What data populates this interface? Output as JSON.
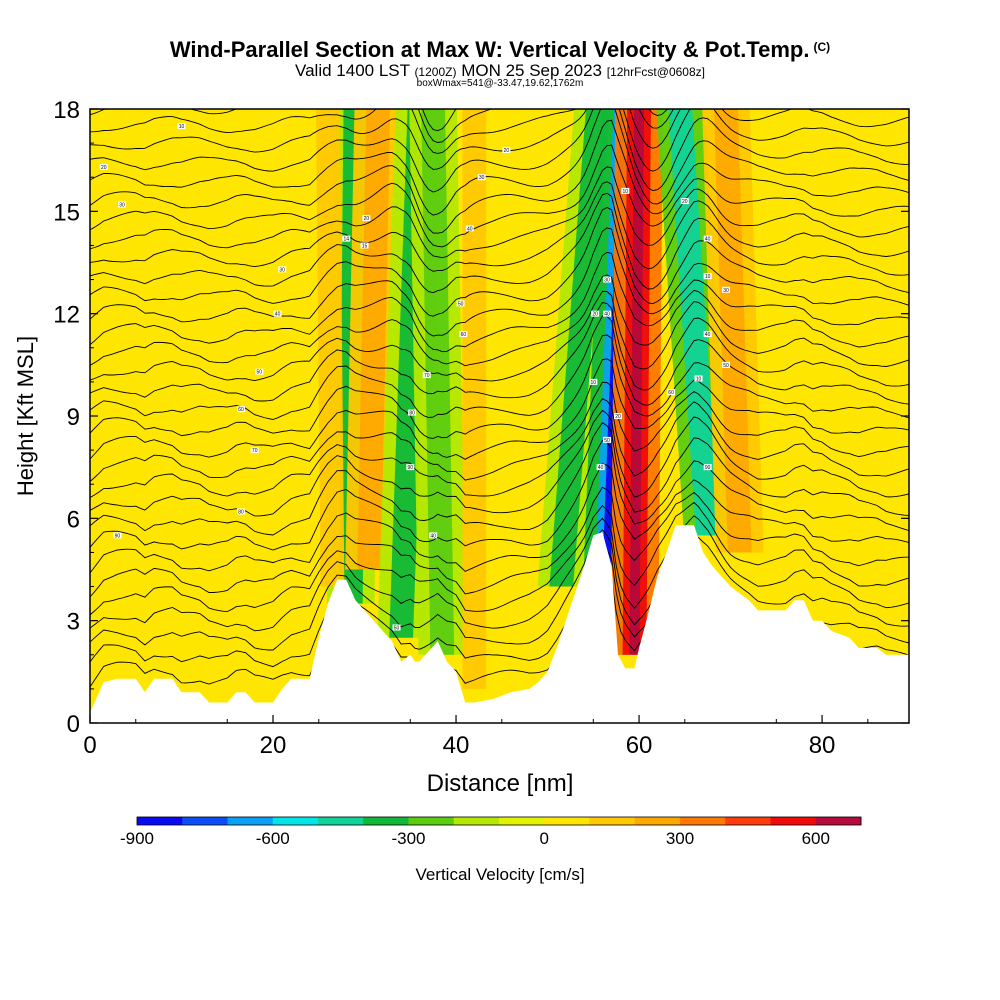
{
  "header": {
    "title": "Wind-Parallel Section at Max W: Vertical Velocity & Pot.Temp.",
    "title_mark": "(C)",
    "valid_prefix": "Valid 1400 LST",
    "valid_utc": "(1200Z)",
    "valid_date": "MON 25 Sep 2023",
    "forecast_tag": "[12hrFcst@0608z]",
    "box_info": "boxWmax=541@-33.47,19.62,1762m"
  },
  "chart_data": {
    "type": "heatmap",
    "title": "Wind-Parallel Section at Max W: Vertical Velocity & Pot.Temp.",
    "xlabel": "Distance [nm]",
    "ylabel": "Height [Kft MSL]",
    "xlim": [
      0,
      89.5
    ],
    "ylim": [
      0,
      18
    ],
    "x_ticks": [
      0,
      20,
      40,
      60,
      80
    ],
    "x_tick_labels": [
      "0",
      "20",
      "40",
      "60",
      "80"
    ],
    "y_ticks": [
      0,
      3,
      6,
      9,
      12,
      15,
      18
    ],
    "y_tick_labels": [
      "0",
      "3",
      "6",
      "9",
      "12",
      "15",
      "18"
    ],
    "colorbar": {
      "label": "Vertical Velocity [cm/s]",
      "min": -900,
      "max": 700,
      "step": 100,
      "tick_values": [
        -900,
        -600,
        -300,
        0,
        300,
        600
      ],
      "tick_labels": [
        "-900",
        "-600",
        "-300",
        "0",
        "300",
        "600"
      ],
      "colors": [
        "#0a0af0",
        "#0a4ef5",
        "#0aa0f5",
        "#00e6e6",
        "#10d39a",
        "#10b838",
        "#5ccc10",
        "#b4e800",
        "#e0f400",
        "#ffe600",
        "#ffc800",
        "#ffa800",
        "#ff7800",
        "#ff3c0a",
        "#f00a0a",
        "#b40a3c"
      ]
    },
    "max_w": {
      "value_cm_s": 541,
      "lat": -33.47,
      "lon": 19.62,
      "height_m": 1762
    },
    "vertical_velocity_bands": [
      {
        "x_base": 28.5,
        "x_top": 29.0,
        "value": -320,
        "base_kft": 3.5
      },
      {
        "x_base": 30.5,
        "x_top": 31.5,
        "value": 250,
        "base_kft": 4.5
      },
      {
        "x_base": 34.0,
        "x_top": 36.0,
        "value": -320,
        "base_kft": 2.5
      },
      {
        "x_base": 38.5,
        "x_top": 37.5,
        "value": -250,
        "base_kft": 2.0
      },
      {
        "x_base": 51.5,
        "x_top": 55.5,
        "value": -320,
        "base_kft": 4.0
      },
      {
        "x_base": 56.2,
        "x_top": 58.5,
        "value": -700,
        "base_kft": 2.0
      },
      {
        "x_base": 59.5,
        "x_top": 60.0,
        "value": 560,
        "base_kft": 2.0
      },
      {
        "x_base": 67.5,
        "x_top": 64.5,
        "value": -480,
        "base_kft": 5.5
      },
      {
        "x_base": 71.0,
        "x_top": 69.5,
        "value": 250,
        "base_kft": 5.0
      },
      {
        "x_base": 26.5,
        "x_top": 26.0,
        "value": 150,
        "base_kft": 4.0
      },
      {
        "x_base": 42.0,
        "x_top": 42.0,
        "value": 120,
        "base_kft": 1.0
      }
    ],
    "terrain_kft": [
      [
        0,
        0.3
      ],
      [
        0.5,
        0.6
      ],
      [
        1.5,
        1.2
      ],
      [
        3,
        1.3
      ],
      [
        5,
        1.3
      ],
      [
        6,
        0.9
      ],
      [
        7,
        1.3
      ],
      [
        9,
        1.3
      ],
      [
        10,
        0.9
      ],
      [
        12,
        0.9
      ],
      [
        13,
        0.6
      ],
      [
        15,
        0.6
      ],
      [
        16,
        0.9
      ],
      [
        17,
        0.9
      ],
      [
        18,
        0.6
      ],
      [
        20,
        0.6
      ],
      [
        21,
        1.0
      ],
      [
        22,
        1.3
      ],
      [
        24,
        1.3
      ],
      [
        25,
        2.5
      ],
      [
        26,
        3.5
      ],
      [
        27,
        4.2
      ],
      [
        28,
        4.2
      ],
      [
        29,
        3.6
      ],
      [
        30,
        3.3
      ],
      [
        31,
        3.0
      ],
      [
        32,
        2.7
      ],
      [
        33,
        2.4
      ],
      [
        34,
        1.8
      ],
      [
        35,
        2.0
      ],
      [
        35.5,
        1.8
      ],
      [
        36,
        1.8
      ],
      [
        37,
        2.1
      ],
      [
        38,
        2.4
      ],
      [
        39,
        1.8
      ],
      [
        40,
        1.5
      ],
      [
        41,
        0.6
      ],
      [
        42,
        0.6
      ],
      [
        44,
        0.7
      ],
      [
        46,
        0.9
      ],
      [
        48,
        1.0
      ],
      [
        49,
        1.2
      ],
      [
        50,
        1.5
      ],
      [
        51,
        2.2
      ],
      [
        52,
        3.0
      ],
      [
        53,
        3.8
      ],
      [
        54,
        4.6
      ],
      [
        55,
        5.5
      ],
      [
        56,
        5.6
      ],
      [
        57,
        4.6
      ],
      [
        57.7,
        2.0
      ],
      [
        58.5,
        1.6
      ],
      [
        59.5,
        1.6
      ],
      [
        60,
        2.2
      ],
      [
        61,
        3.2
      ],
      [
        62,
        4.3
      ],
      [
        63,
        5.0
      ],
      [
        64,
        5.8
      ],
      [
        66,
        5.8
      ],
      [
        67,
        5.0
      ],
      [
        68,
        4.6
      ],
      [
        69,
        4.3
      ],
      [
        70,
        4.0
      ],
      [
        71,
        3.8
      ],
      [
        72,
        3.6
      ],
      [
        73,
        3.3
      ],
      [
        76,
        3.3
      ],
      [
        77,
        3.6
      ],
      [
        78,
        3.6
      ],
      [
        79,
        3.0
      ],
      [
        80,
        3.0
      ],
      [
        81,
        2.7
      ],
      [
        83,
        2.5
      ],
      [
        84,
        2.2
      ],
      [
        86,
        2.2
      ],
      [
        87,
        2.0
      ],
      [
        88,
        2.0
      ],
      [
        89.5,
        2.0
      ]
    ],
    "isentrope_count": 32,
    "isentrope_annotations": [
      {
        "x": 3.5,
        "y": 15.2,
        "label": "30"
      },
      {
        "x": 10,
        "y": 17.5,
        "label": "10"
      },
      {
        "x": 1.5,
        "y": 16.3,
        "label": "20"
      },
      {
        "x": 21,
        "y": 13.3,
        "label": "30"
      },
      {
        "x": 20.5,
        "y": 12.0,
        "label": "40"
      },
      {
        "x": 18.5,
        "y": 10.3,
        "label": "50"
      },
      {
        "x": 16.5,
        "y": 9.2,
        "label": "60"
      },
      {
        "x": 18.0,
        "y": 8.0,
        "label": "70"
      },
      {
        "x": 16.5,
        "y": 6.2,
        "label": "80"
      },
      {
        "x": 3.0,
        "y": 5.5,
        "label": "90"
      },
      {
        "x": 30.2,
        "y": 14.8,
        "label": "20"
      },
      {
        "x": 28,
        "y": 14.2,
        "label": "14"
      },
      {
        "x": 30,
        "y": 14.0,
        "label": "15"
      },
      {
        "x": 45.5,
        "y": 16.8,
        "label": "20"
      },
      {
        "x": 42.8,
        "y": 16.0,
        "label": "30"
      },
      {
        "x": 41.5,
        "y": 14.5,
        "label": "40"
      },
      {
        "x": 40.5,
        "y": 12.3,
        "label": "50"
      },
      {
        "x": 40.8,
        "y": 11.4,
        "label": "60"
      },
      {
        "x": 36.8,
        "y": 10.2,
        "label": "70"
      },
      {
        "x": 35.2,
        "y": 9.1,
        "label": "80"
      },
      {
        "x": 35.0,
        "y": 7.5,
        "label": "90"
      },
      {
        "x": 37.5,
        "y": 5.5,
        "label": "40"
      },
      {
        "x": 33.5,
        "y": 2.8,
        "label": "50"
      },
      {
        "x": 58.5,
        "y": 15.6,
        "label": "10"
      },
      {
        "x": 56.5,
        "y": 13.0,
        "label": "30"
      },
      {
        "x": 55.2,
        "y": 12.0,
        "label": "20"
      },
      {
        "x": 56.5,
        "y": 12.0,
        "label": "40"
      },
      {
        "x": 55.0,
        "y": 10.0,
        "label": "10"
      },
      {
        "x": 56.5,
        "y": 8.3,
        "label": "50"
      },
      {
        "x": 55.8,
        "y": 7.5,
        "label": "40"
      },
      {
        "x": 57.7,
        "y": 9.0,
        "label": "20"
      },
      {
        "x": 63.5,
        "y": 9.7,
        "label": "60"
      },
      {
        "x": 65.0,
        "y": 15.3,
        "label": "20"
      },
      {
        "x": 67.5,
        "y": 14.2,
        "label": "40"
      },
      {
        "x": 67.5,
        "y": 13.1,
        "label": "10"
      },
      {
        "x": 69.5,
        "y": 12.7,
        "label": "30"
      },
      {
        "x": 67.5,
        "y": 11.4,
        "label": "40"
      },
      {
        "x": 66.5,
        "y": 10.1,
        "label": "10"
      },
      {
        "x": 69.5,
        "y": 10.5,
        "label": "50"
      },
      {
        "x": 67.5,
        "y": 7.5,
        "label": "90"
      }
    ]
  }
}
